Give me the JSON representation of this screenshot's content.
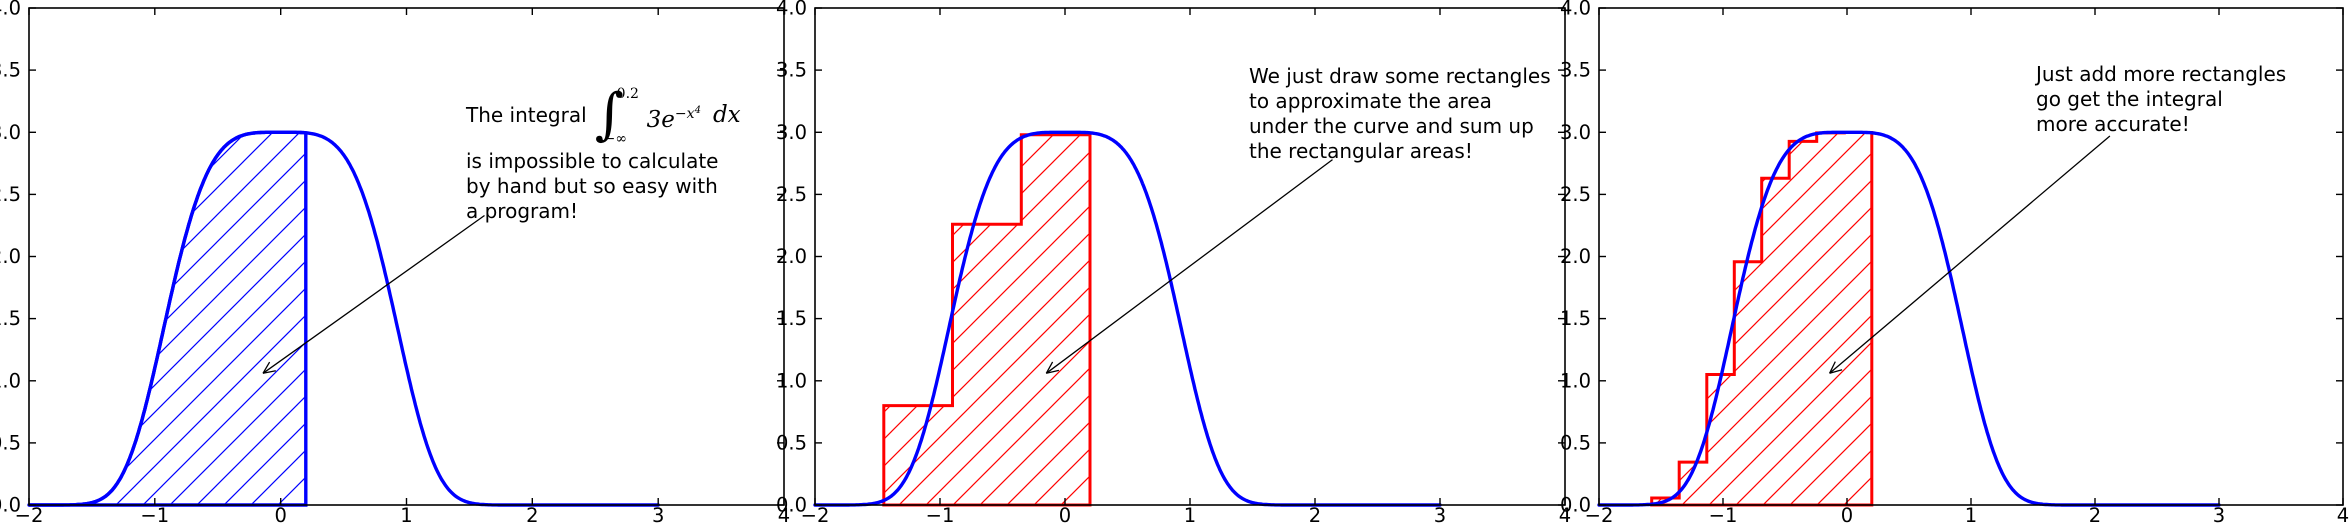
{
  "figure": {
    "background": "#ffffff",
    "curve_color": "#0000ff",
    "rect_color": "#ff0000",
    "arrow_color": "#000000"
  },
  "axes": {
    "xlim": [
      -2,
      4
    ],
    "ylim": [
      0,
      4
    ],
    "xticks": [
      -2,
      -1,
      0,
      1,
      2,
      3,
      4
    ],
    "xtick_labels": [
      "−2",
      "−1",
      "0",
      "1",
      "2",
      "3",
      "4"
    ],
    "yticks": [
      0,
      0.5,
      1,
      1.5,
      2,
      2.5,
      3,
      3.5,
      4
    ],
    "ytick_labels": [
      "0.0",
      "0.5",
      "1.0",
      "1.5",
      "2.0",
      "2.5",
      "3.0",
      "3.5",
      "4.0"
    ]
  },
  "chart_data": [
    {
      "type": "area",
      "curve": {
        "formula": "y = 3e^(−x⁴)",
        "color": "#0000ff",
        "x_range": [
          -2,
          3
        ]
      },
      "area": {
        "x_from": -2,
        "x_to": 0.2,
        "hatch": "/",
        "color": "#0000ff"
      },
      "annotation": {
        "prefix": "The integral",
        "integral_symbol": "∫",
        "upper_limit": "0.2",
        "lower_limit": "−∞",
        "integrand": "3e",
        "exponent_base": "−x",
        "exponent_power": "4",
        "differential": "dx",
        "lines": [
          "is impossible to calculate",
          "by hand but so easy with",
          "a program!"
        ],
        "arrow": {
          "from": [
            1.62,
            2.33
          ],
          "to": [
            -0.14,
            1.06
          ]
        }
      }
    },
    {
      "type": "bar",
      "curve": {
        "formula": "y = 3e^(−x⁴)",
        "color": "#0000ff",
        "x_range": [
          -2,
          3
        ]
      },
      "rectangles": {
        "edges": [
          -1.45,
          -0.9,
          -0.35,
          0.2
        ],
        "heights": [
          0.8,
          2.26,
          2.98
        ],
        "hatch": "/",
        "color": "#ff0000"
      },
      "annotation": {
        "lines": [
          "We just draw some rectangles",
          "to approximate the area",
          "under the curve and sum up",
          "the rectangular areas!"
        ],
        "arrow": {
          "from": [
            2.14,
            2.78
          ],
          "to": [
            -0.15,
            1.06
          ]
        }
      }
    },
    {
      "type": "bar",
      "curve": {
        "formula": "y = 3e^(−x⁴)",
        "color": "#0000ff",
        "x_range": [
          -2,
          3
        ]
      },
      "rectangles": {
        "edges": [
          -1.575,
          -1.353,
          -1.131,
          -0.909,
          -0.688,
          -0.466,
          -0.244,
          -0.022,
          0.2
        ],
        "heights": [
          0.056,
          0.345,
          1.05,
          1.957,
          2.63,
          2.926,
          2.995,
          2.998
        ],
        "hatch": "/",
        "color": "#ff0000"
      },
      "annotation": {
        "lines": [
          "Just add more rectangles",
          "go get the integral",
          "more accurate!"
        ],
        "arrow": {
          "from": [
            2.12,
            2.97
          ],
          "to": [
            -0.14,
            1.06
          ]
        }
      }
    }
  ]
}
